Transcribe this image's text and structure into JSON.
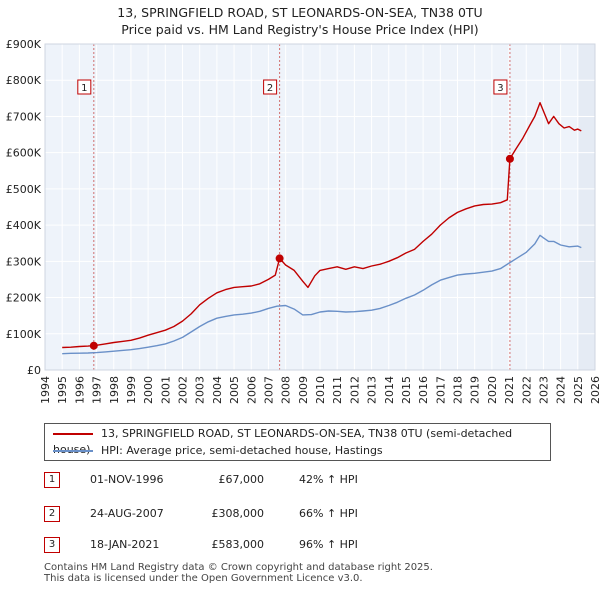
{
  "title_line1": "13, SPRINGFIELD ROAD, ST LEONARDS-ON-SEA, TN38 0TU",
  "title_line2": "Price paid vs. HM Land Registry's House Price Index (HPI)",
  "chart_data": {
    "type": "line",
    "title": "13, SPRINGFIELD ROAD, ST LEONARDS-ON-SEA, TN38 0TU — Price paid vs. HM Land Registry's House Price Index (HPI)",
    "xlabel": "",
    "ylabel": "",
    "xlim": [
      1994,
      2026
    ],
    "ylim": [
      0,
      900000
    ],
    "x_ticks": [
      1994,
      1995,
      1996,
      1997,
      1998,
      1999,
      2000,
      2001,
      2002,
      2003,
      2004,
      2005,
      2006,
      2007,
      2008,
      2009,
      2010,
      2011,
      2012,
      2013,
      2014,
      2015,
      2016,
      2017,
      2018,
      2019,
      2020,
      2021,
      2022,
      2023,
      2024,
      2025,
      2026
    ],
    "y_ticks": [
      0,
      100000,
      200000,
      300000,
      400000,
      500000,
      600000,
      700000,
      800000,
      900000
    ],
    "y_tick_labels": [
      "£0",
      "£100K",
      "£200K",
      "£300K",
      "£400K",
      "£500K",
      "£600K",
      "£700K",
      "£800K",
      "£900K"
    ],
    "grid": true,
    "series": [
      {
        "name": "13, SPRINGFIELD ROAD, ST LEONARDS-ON-SEA, TN38 0TU (semi-detached house)",
        "color": "#c00000",
        "x": [
          1995.0,
          1995.5,
          1996.0,
          1996.5,
          1996.84,
          1997.5,
          1998.0,
          1998.5,
          1999.0,
          1999.5,
          2000.0,
          2000.5,
          2001.0,
          2001.5,
          2002.0,
          2002.5,
          2003.0,
          2003.5,
          2004.0,
          2004.5,
          2005.0,
          2005.5,
          2006.0,
          2006.5,
          2007.0,
          2007.4,
          2007.65,
          2008.0,
          2008.5,
          2009.0,
          2009.3,
          2009.7,
          2010.0,
          2010.5,
          2011.0,
          2011.5,
          2012.0,
          2012.5,
          2013.0,
          2013.5,
          2014.0,
          2014.5,
          2015.0,
          2015.5,
          2016.0,
          2016.5,
          2017.0,
          2017.5,
          2018.0,
          2018.5,
          2019.0,
          2019.5,
          2020.0,
          2020.5,
          2020.9,
          2021.05,
          2021.4,
          2021.8,
          2022.2,
          2022.5,
          2022.8,
          2023.0,
          2023.3,
          2023.6,
          2023.9,
          2024.2,
          2024.5,
          2024.8,
          2025.0,
          2025.2
        ],
        "values": [
          62000,
          63000,
          65000,
          66000,
          67000,
          72000,
          76000,
          79000,
          82000,
          88000,
          96000,
          103000,
          110000,
          120000,
          135000,
          155000,
          180000,
          198000,
          213000,
          222000,
          228000,
          230000,
          232000,
          238000,
          250000,
          262000,
          308000,
          290000,
          275000,
          245000,
          228000,
          260000,
          275000,
          280000,
          285000,
          278000,
          285000,
          280000,
          287000,
          292000,
          300000,
          310000,
          323000,
          333000,
          355000,
          375000,
          400000,
          420000,
          435000,
          445000,
          453000,
          457000,
          458000,
          462000,
          470000,
          583000,
          610000,
          640000,
          675000,
          700000,
          738000,
          715000,
          680000,
          700000,
          680000,
          668000,
          672000,
          662000,
          665000,
          660000
        ]
      },
      {
        "name": "HPI: Average price, semi-detached house, Hastings",
        "color": "#6a90c8",
        "x": [
          1995.0,
          1995.5,
          1996.0,
          1996.5,
          1997.0,
          1997.5,
          1998.0,
          1998.5,
          1999.0,
          1999.5,
          2000.0,
          2000.5,
          2001.0,
          2001.5,
          2002.0,
          2002.5,
          2003.0,
          2003.5,
          2004.0,
          2004.5,
          2005.0,
          2005.5,
          2006.0,
          2006.5,
          2007.0,
          2007.5,
          2008.0,
          2008.5,
          2009.0,
          2009.5,
          2010.0,
          2010.5,
          2011.0,
          2011.5,
          2012.0,
          2012.5,
          2013.0,
          2013.5,
          2014.0,
          2014.5,
          2015.0,
          2015.5,
          2016.0,
          2016.5,
          2017.0,
          2017.5,
          2018.0,
          2018.5,
          2019.0,
          2019.5,
          2020.0,
          2020.5,
          2021.0,
          2021.5,
          2022.0,
          2022.5,
          2022.8,
          2023.0,
          2023.3,
          2023.6,
          2024.0,
          2024.5,
          2025.0,
          2025.2
        ],
        "values": [
          45000,
          46000,
          46500,
          47000,
          48000,
          50000,
          52000,
          54000,
          56000,
          59000,
          63000,
          67000,
          72000,
          80000,
          90000,
          105000,
          120000,
          133000,
          143000,
          148000,
          152000,
          154000,
          157000,
          162000,
          170000,
          176000,
          178000,
          168000,
          152000,
          153000,
          160000,
          163000,
          162000,
          160000,
          161000,
          163000,
          165000,
          170000,
          178000,
          187000,
          198000,
          207000,
          220000,
          235000,
          248000,
          255000,
          262000,
          265000,
          267000,
          270000,
          273000,
          280000,
          295000,
          310000,
          325000,
          348000,
          372000,
          365000,
          355000,
          355000,
          345000,
          340000,
          342000,
          338000
        ]
      }
    ],
    "annotations": [
      {
        "label": "1",
        "x": 1996.84,
        "value": 67000
      },
      {
        "label": "2",
        "x": 2007.65,
        "value": 308000
      },
      {
        "label": "3",
        "x": 2021.05,
        "value": 583000
      }
    ]
  },
  "legend": {
    "series1": "13, SPRINGFIELD ROAD, ST LEONARDS-ON-SEA, TN38 0TU (semi-detached house)",
    "series2": "HPI: Average price, semi-detached house, Hastings"
  },
  "sales": [
    {
      "num": "1",
      "date": "01-NOV-1996",
      "price": "£67,000",
      "hpi": "42% ↑ HPI"
    },
    {
      "num": "2",
      "date": "24-AUG-2007",
      "price": "£308,000",
      "hpi": "66% ↑ HPI"
    },
    {
      "num": "3",
      "date": "18-JAN-2021",
      "price": "£583,000",
      "hpi": "96% ↑ HPI"
    }
  ],
  "footer_line1": "Contains HM Land Registry data © Crown copyright and database right 2025.",
  "footer_line2": "This data is licensed under the Open Government Licence v3.0."
}
